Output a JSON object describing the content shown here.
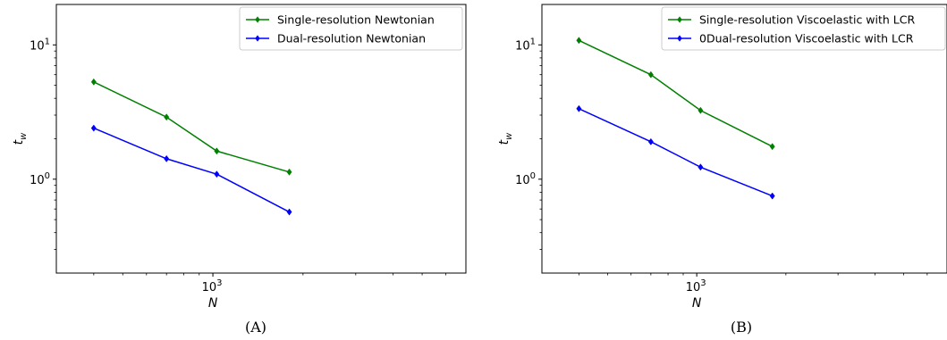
{
  "figure": {
    "panels": [
      {
        "caption": "(A)"
      },
      {
        "caption": "(B)"
      }
    ]
  },
  "colors": {
    "single": "#008000",
    "dual": "#0000ff",
    "axes": "#000000"
  },
  "chart_data": [
    {
      "type": "line",
      "title": "",
      "xlabel": "N",
      "ylabel": "t_w",
      "xscale": "log",
      "yscale": "log",
      "xlim": [
        300,
        7000
      ],
      "ylim": [
        0.2,
        20
      ],
      "xticks": [
        {
          "value": 1000,
          "base": "10",
          "exp": "3"
        }
      ],
      "yticks": [
        {
          "value": 1,
          "base": "10",
          "exp": "0"
        },
        {
          "value": 10,
          "base": "10",
          "exp": "1"
        }
      ],
      "legend_position": "top-right",
      "grid": false,
      "x": [
        400,
        700,
        1030,
        1800
      ],
      "series": [
        {
          "name": "Single-resolution Newtonian",
          "color": "#008000",
          "marker": "diamond",
          "values": [
            5.3,
            2.9,
            1.62,
            1.13
          ]
        },
        {
          "name": "Dual-resolution Newtonian",
          "color": "#0000ff",
          "marker": "diamond",
          "values": [
            2.4,
            1.42,
            1.09,
            0.57
          ]
        }
      ]
    },
    {
      "type": "line",
      "title": "",
      "xlabel": "N",
      "ylabel": "t_w",
      "xscale": "log",
      "yscale": "log",
      "xlim": [
        300,
        7000
      ],
      "ylim": [
        0.2,
        20
      ],
      "xticks": [
        {
          "value": 1000,
          "base": "10",
          "exp": "3"
        }
      ],
      "yticks": [
        {
          "value": 1,
          "base": "10",
          "exp": "0"
        },
        {
          "value": 10,
          "base": "10",
          "exp": "1"
        }
      ],
      "legend_position": "top-right",
      "grid": false,
      "x": [
        400,
        700,
        1030,
        1800
      ],
      "series": [
        {
          "name": "Single-resolution Viscoelastic with LCR",
          "color": "#008000",
          "marker": "diamond",
          "values": [
            10.8,
            6.0,
            3.25,
            1.75
          ]
        },
        {
          "name": "0Dual-resolution Viscoelastic with LCR",
          "color": "#0000ff",
          "marker": "diamond",
          "values": [
            3.35,
            1.9,
            1.23,
            0.75
          ]
        }
      ]
    }
  ]
}
